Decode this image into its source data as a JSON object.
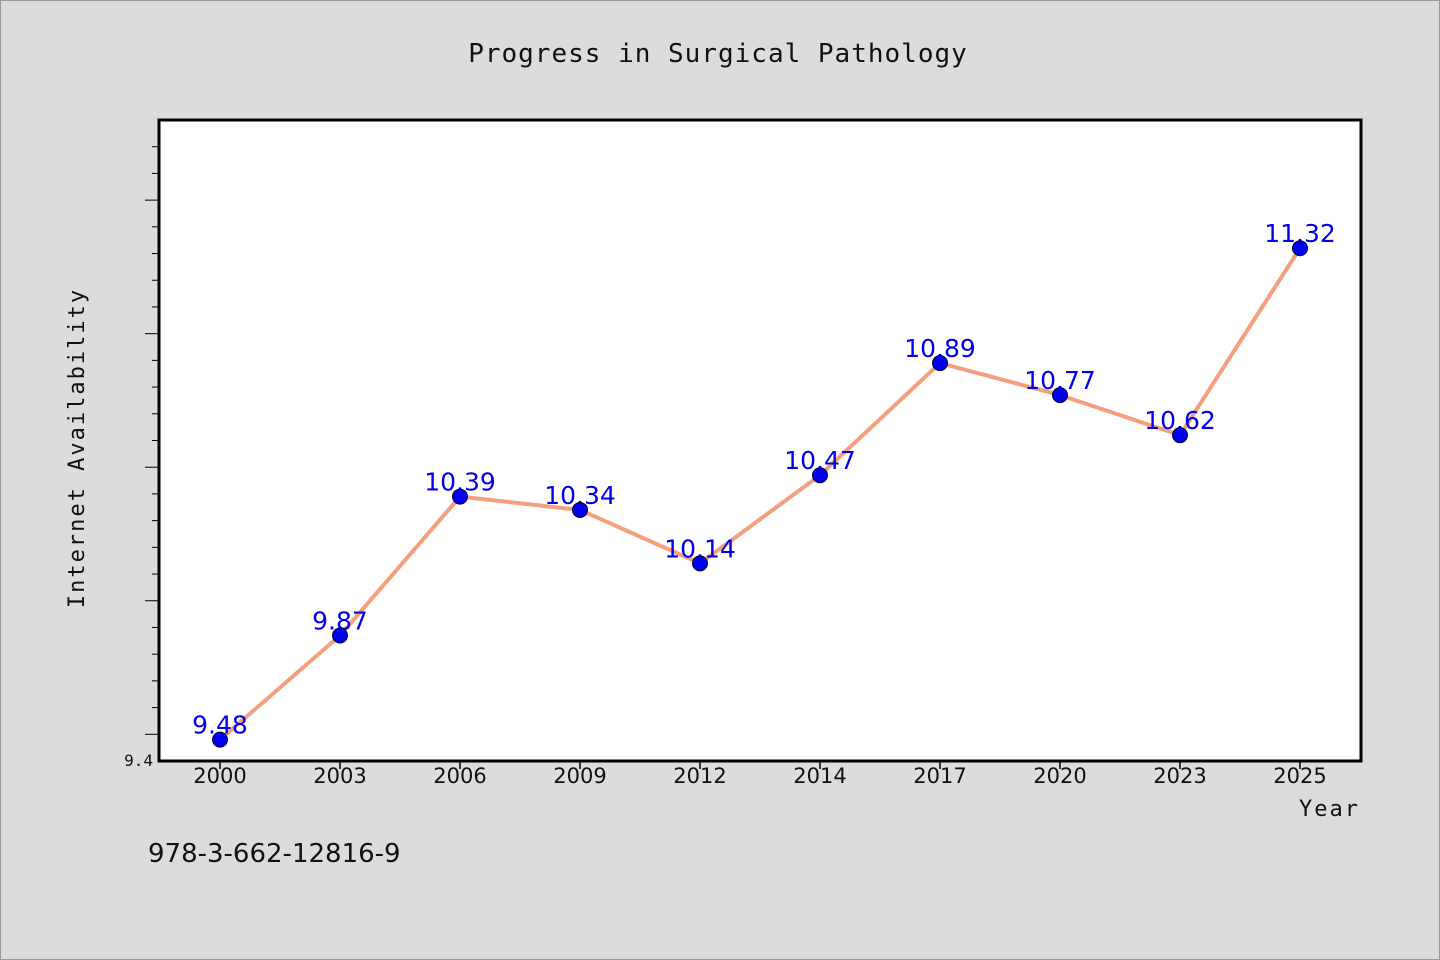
{
  "chart_data": {
    "type": "line",
    "title": "Progress in Surgical Pathology",
    "xlabel": "Year",
    "ylabel": "Internet Availability",
    "categories": [
      "2000",
      "2003",
      "2006",
      "2009",
      "2012",
      "2014",
      "2017",
      "2020",
      "2023",
      "2025"
    ],
    "series": [
      {
        "values": [
          9.48,
          9.87,
          10.39,
          10.34,
          10.14,
          10.47,
          10.89,
          10.77,
          10.62,
          11.32
        ]
      }
    ],
    "data_labels": [
      "9.48",
      "9.87",
      "10.39",
      "10.34",
      "10.14",
      "10.47",
      "10.89",
      "10.77",
      "10.62",
      "11.32"
    ],
    "y_tick_labels": [
      "9.4"
    ],
    "ylim": [
      9.4,
      11.8
    ],
    "grid": false,
    "line_color": "#f4a07e",
    "marker_color": "#0000ee",
    "label_color": "#0000ee"
  },
  "footnote": "978-3-662-12816-9"
}
